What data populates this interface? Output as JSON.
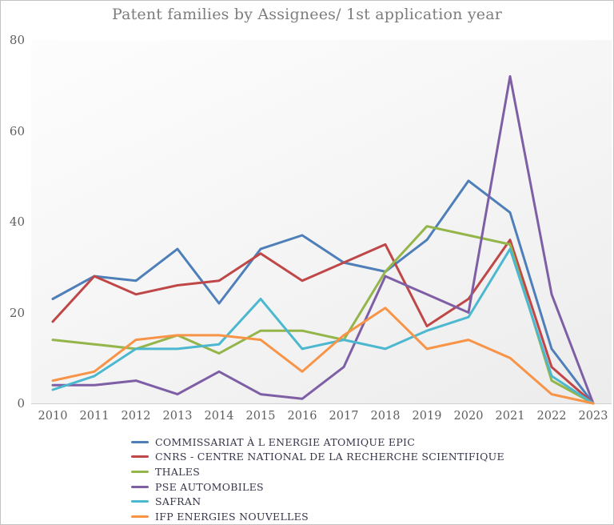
{
  "title": "Patent families by Assignees/ 1st application year",
  "chart_data": {
    "type": "line",
    "x": [
      "2010",
      "2011",
      "2012",
      "2013",
      "2014",
      "2015",
      "2016",
      "2017",
      "2018",
      "2019",
      "2020",
      "2021",
      "2022",
      "2023"
    ],
    "xlabel": "",
    "ylabel": "",
    "ylim": [
      0,
      80
    ],
    "yticks": [
      0,
      20,
      40,
      60,
      80
    ],
    "grid": false,
    "legend_position": "bottom-left",
    "series": [
      {
        "name": "COMMISSARIAT À L ENERGIE ATOMIQUE EPIC",
        "color": "#4e7fb8",
        "values": [
          23,
          28,
          27,
          34,
          22,
          34,
          37,
          31,
          29,
          36,
          49,
          42,
          12,
          0
        ]
      },
      {
        "name": "CNRS - CENTRE NATIONAL DE LA RECHERCHE SCIENTIFIQUE",
        "color": "#bf4748",
        "values": [
          18,
          28,
          24,
          26,
          27,
          33,
          27,
          31,
          35,
          17,
          23,
          36,
          8,
          0
        ]
      },
      {
        "name": "THALES",
        "color": "#94b54a",
        "values": [
          14,
          13,
          12,
          15,
          11,
          16,
          16,
          14,
          29,
          39,
          37,
          35,
          5,
          0
        ]
      },
      {
        "name": "PSE AUTOMOBILES",
        "color": "#7e5fa5",
        "values": [
          4,
          4,
          5,
          2,
          7,
          2,
          1,
          8,
          28,
          24,
          20,
          72,
          24,
          0
        ]
      },
      {
        "name": "SAFRAN",
        "color": "#4cb8cf",
        "values": [
          3,
          6,
          12,
          12,
          13,
          23,
          12,
          14,
          12,
          16,
          19,
          34,
          6,
          0
        ]
      },
      {
        "name": "IFP ENERGIES NOUVELLES",
        "color": "#f79447",
        "values": [
          5,
          7,
          14,
          15,
          15,
          14,
          7,
          15,
          21,
          12,
          14,
          10,
          2,
          0
        ]
      }
    ]
  }
}
